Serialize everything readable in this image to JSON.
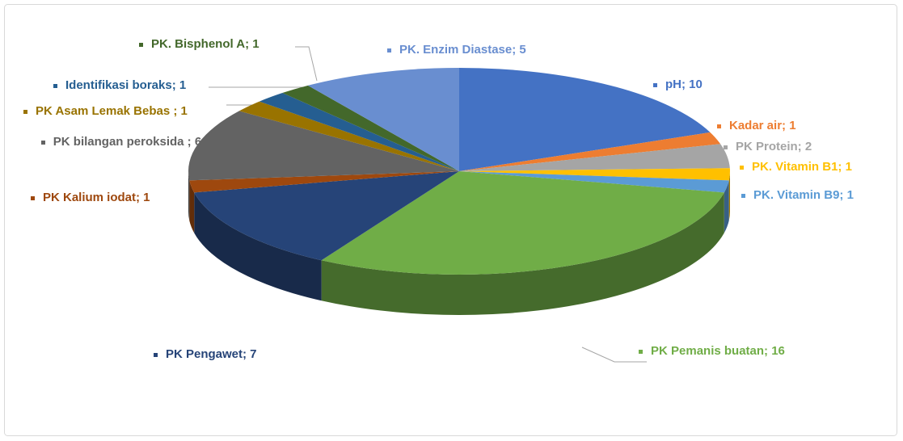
{
  "chart_data": {
    "type": "pie",
    "values": [
      10,
      1,
      2,
      1,
      1,
      16,
      7,
      1,
      6,
      1,
      1,
      1,
      5
    ],
    "value_labels": [
      "pH; 10",
      "Kadar air; 1",
      "PK Protein; 2",
      "PK. Vitamin B1; 1",
      "PK. Vitamin B9; 1",
      "PK Pemanis buatan; 16",
      "PK Pengawet; 7",
      "PK Kalium iodat; 1",
      "PK bilangan peroksida ; 6",
      "PK Asam Lemak Bebas ; 1",
      "Identifikasi boraks; 1",
      "PK. Bisphenol A; 1",
      "PK. Enzim Diastase; 5"
    ],
    "colors": [
      "#4472c4",
      "#ed7d31",
      "#a5a5a5",
      "#ffc000",
      "#5b9bd5",
      "#70ad47",
      "#264478",
      "#9e480e",
      "#636363",
      "#997300",
      "#255e91",
      "#43682b",
      "#698ed0"
    ]
  }
}
